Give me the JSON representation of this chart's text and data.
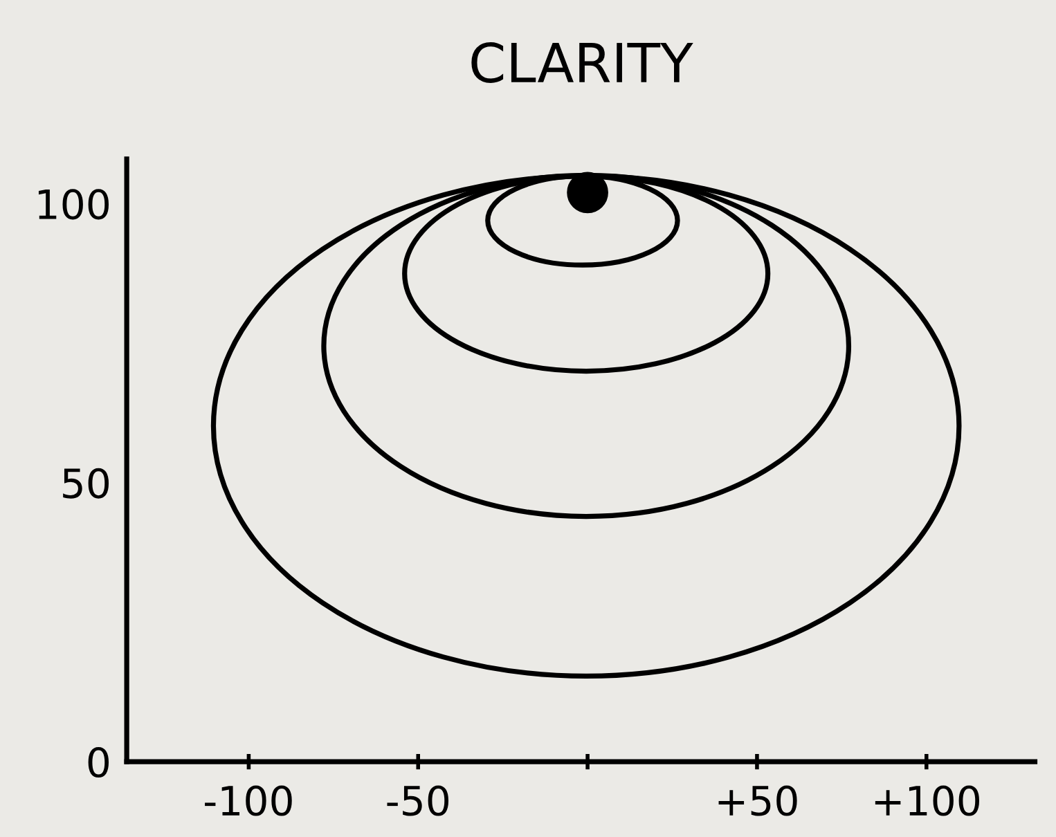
{
  "chart_data": {
    "type": "scatter",
    "title": "CLARITY",
    "xlim": [
      -136,
      132
    ],
    "ylim": [
      0,
      108
    ],
    "xticks": [
      {
        "value": -100,
        "label": "-100"
      },
      {
        "value": -50,
        "label": "-50"
      },
      {
        "value": 0,
        "label": null
      },
      {
        "value": 50,
        "label": "+50"
      },
      {
        "value": 100,
        "label": "+100"
      }
    ],
    "yticks": [
      0,
      50,
      100
    ],
    "grid": false,
    "marker": "circle",
    "series": [
      {
        "color": "#000000",
        "x": [
          0
        ],
        "values": [
          102
        ]
      }
    ]
  }
}
